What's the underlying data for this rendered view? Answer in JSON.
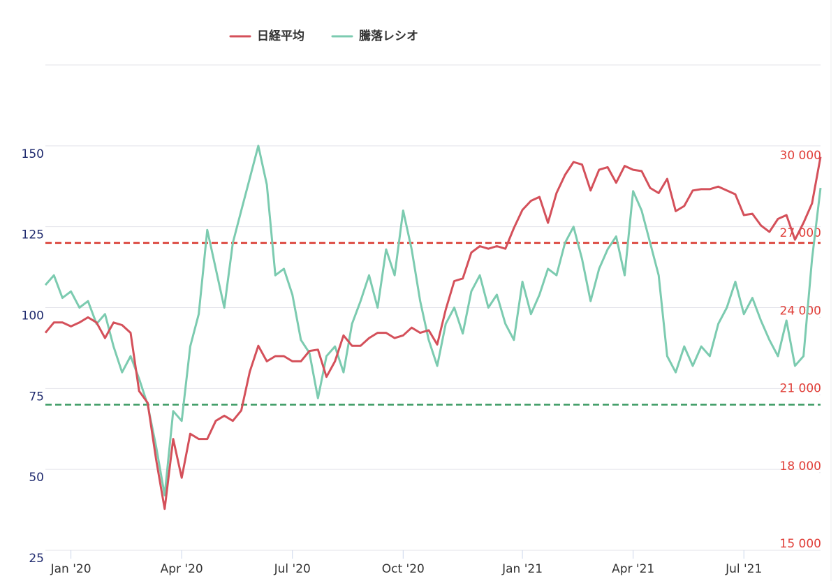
{
  "chart_data": {
    "type": "line",
    "legend": "top",
    "categories": [
      null,
      null,
      null,
      "Jan '20",
      null,
      null,
      null,
      null,
      null,
      null,
      null,
      null,
      null,
      null,
      null,
      null,
      "Apr '20",
      null,
      null,
      null,
      null,
      null,
      null,
      null,
      null,
      null,
      null,
      null,
      null,
      "Jul '20",
      null,
      null,
      null,
      null,
      null,
      null,
      null,
      null,
      null,
      null,
      null,
      null,
      "Oct '20",
      null,
      null,
      null,
      null,
      null,
      null,
      null,
      null,
      null,
      null,
      null,
      null,
      null,
      "Jan '21",
      null,
      null,
      null,
      null,
      null,
      null,
      null,
      null,
      null,
      null,
      null,
      null,
      "Apr '21",
      null,
      null,
      null,
      null,
      null,
      null,
      null,
      null,
      null,
      null,
      null,
      null,
      "Jul '21",
      null,
      null,
      null,
      null,
      null,
      null,
      null,
      null,
      null
    ],
    "series": [
      {
        "name": "日経平均",
        "color": "#d4505a",
        "axis": "y2",
        "values": [
          23400,
          23800,
          23800,
          23650,
          23800,
          24000,
          23800,
          23200,
          23800,
          23700,
          23400,
          21150,
          20700,
          18500,
          16600,
          19300,
          17800,
          19500,
          19300,
          19300,
          20000,
          20200,
          20000,
          20400,
          21900,
          22900,
          22300,
          22500,
          22500,
          22300,
          22300,
          22700,
          22750,
          21700,
          22300,
          23300,
          22900,
          22900,
          23200,
          23400,
          23400,
          23200,
          23300,
          23600,
          23400,
          23500,
          22950,
          24300,
          25400,
          25500,
          26500,
          26750,
          26650,
          26750,
          26650,
          27450,
          28150,
          28500,
          28650,
          27650,
          28800,
          29500,
          30000,
          29900,
          28900,
          29700,
          29800,
          29200,
          29850,
          29700,
          29650,
          29000,
          28800,
          29350,
          28100,
          28300,
          28900,
          28950,
          28950,
          29050,
          28900,
          28750,
          27950,
          28000,
          27550,
          27300,
          27800,
          27950,
          27000,
          27650,
          28400,
          30200
        ]
      },
      {
        "name": "騰落レシオ",
        "color": "#7ccbb0",
        "values": [
          107,
          110,
          103,
          105,
          100,
          102,
          95,
          98,
          88,
          80,
          85,
          78,
          70,
          57,
          42,
          68,
          65,
          88,
          98,
          124,
          112,
          100,
          120,
          130,
          140,
          150,
          138,
          110,
          112,
          104,
          90,
          86,
          72,
          85,
          88,
          80,
          95,
          102,
          110,
          100,
          118,
          110,
          130,
          118,
          102,
          90,
          82,
          95,
          100,
          92,
          105,
          110,
          100,
          104,
          95,
          90,
          108,
          98,
          104,
          112,
          110,
          120,
          125,
          115,
          102,
          112,
          118,
          122,
          110,
          136,
          130,
          120,
          110,
          85,
          80,
          88,
          82,
          88,
          85,
          95,
          100,
          108,
          98,
          103,
          96,
          90,
          85,
          96,
          82,
          85,
          115,
          137
        ]
      }
    ],
    "ylim": [
      25,
      175
    ],
    "yticks": [
      25,
      50,
      75,
      100,
      125,
      150
    ],
    "y2lim": [
      15000,
      33750
    ],
    "y2ticks": [
      {
        "value": 15000,
        "label": "15 000"
      },
      {
        "value": 18000,
        "label": "18 000"
      },
      {
        "value": 21000,
        "label": "21 000"
      },
      {
        "value": 24000,
        "label": "24 000"
      },
      {
        "value": 27000,
        "label": "27 000"
      },
      {
        "value": 30000,
        "label": "30 000"
      }
    ],
    "reference_lines": [
      {
        "value": 120,
        "color": "#d9352c"
      },
      {
        "value": 70,
        "color": "#3a9a62"
      }
    ],
    "grid": true
  }
}
